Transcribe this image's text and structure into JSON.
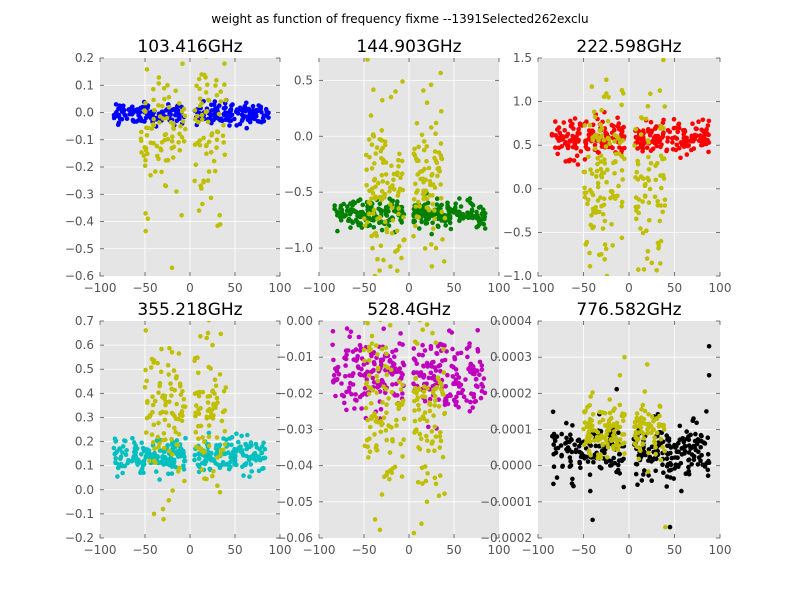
{
  "figure_title": "weight as function of frequency fixme --1391Selected262exclu",
  "chart_data": [
    {
      "type": "scatter",
      "title": "103.416GHz",
      "xlim": [
        -100,
        100
      ],
      "ylim": [
        -0.6,
        0.2
      ],
      "xticks": [
        -100,
        -50,
        0,
        50,
        100
      ],
      "yticks": [
        -0.6,
        -0.5,
        -0.4,
        -0.3,
        -0.2,
        -0.1,
        0.0,
        0.1,
        0.2
      ],
      "ytick_labels": [
        "−0.6",
        "−0.5",
        "−0.4",
        "−0.3",
        "−0.2",
        "−0.1",
        "0.0",
        "0.1",
        "0.2"
      ],
      "xtick_labels": [
        "−100",
        "−50",
        "0",
        "50",
        "100"
      ],
      "grid": true,
      "series": [
        {
          "color": "#0000ff",
          "role": "selected",
          "x_ranges": [
            [
              -85,
              -5
            ],
            [
              5,
              88
            ]
          ],
          "y_center": -0.005,
          "y_spread": 0.02,
          "count": 260
        },
        {
          "color": "#bfbf00",
          "role": "excluded",
          "x_ranges": [
            [
              -55,
              -5
            ],
            [
              5,
              40
            ]
          ],
          "y_center": -0.06,
          "y_spread": 0.12,
          "count": 150,
          "outliers": [
            [
              -20,
              -0.57
            ],
            [
              10,
              -0.36
            ],
            [
              -15,
              -0.29
            ],
            [
              -25,
              0.1
            ],
            [
              20,
              -0.25
            ],
            [
              30,
              -0.1
            ]
          ]
        }
      ]
    },
    {
      "type": "scatter",
      "title": "144.903GHz",
      "xlim": [
        -100,
        100
      ],
      "ylim": [
        -1.25,
        0.7
      ],
      "xticks": [
        -100,
        -50,
        0,
        50,
        100
      ],
      "yticks": [
        -1.0,
        -0.5,
        0.0,
        0.5
      ],
      "ytick_labels": [
        "−1.0",
        "−0.5",
        "0.0",
        "0.5"
      ],
      "xtick_labels": [
        "−100",
        "−50",
        "0",
        "50",
        "100"
      ],
      "grid": true,
      "series": [
        {
          "color": "#008000",
          "role": "selected",
          "x_ranges": [
            [
              -85,
              -5
            ],
            [
              5,
              85
            ]
          ],
          "y_center": -0.7,
          "y_spread": 0.06,
          "count": 300
        },
        {
          "color": "#bfbf00",
          "role": "excluded",
          "x_ranges": [
            [
              -50,
              -5
            ],
            [
              5,
              40
            ]
          ],
          "y_center": -0.45,
          "y_spread": 0.4,
          "count": 200,
          "outliers": [
            [
              -15,
              0.4
            ],
            [
              -20,
              0.35
            ],
            [
              -35,
              -1.1
            ],
            [
              20,
              0.3
            ],
            [
              30,
              -1.0
            ]
          ]
        }
      ]
    },
    {
      "type": "scatter",
      "title": "222.598GHz",
      "xlim": [
        -100,
        100
      ],
      "ylim": [
        -1.0,
        1.5
      ],
      "xticks": [
        -100,
        -50,
        0,
        50,
        100
      ],
      "yticks": [
        -1.0,
        -0.5,
        0.0,
        0.5,
        1.0,
        1.5
      ],
      "ytick_labels": [
        "−1.0",
        "−0.5",
        "0.0",
        "0.5",
        "1.0",
        "1.5"
      ],
      "xtick_labels": [
        "−100",
        "−50",
        "0",
        "50",
        "100"
      ],
      "grid": true,
      "series": [
        {
          "color": "#ff0000",
          "role": "selected",
          "x_ranges": [
            [
              -85,
              -5
            ],
            [
              5,
              88
            ]
          ],
          "y_center": 0.58,
          "y_spread": 0.1,
          "count": 320
        },
        {
          "color": "#bfbf00",
          "role": "excluded",
          "x_ranges": [
            [
              -50,
              -5
            ],
            [
              5,
              40
            ]
          ],
          "y_center": 0.1,
          "y_spread": 0.5,
          "count": 200,
          "outliers": [
            [
              -25,
              1.25
            ],
            [
              -30,
              0.9
            ],
            [
              25,
              -0.85
            ],
            [
              20,
              -0.8
            ],
            [
              -40,
              -0.45
            ]
          ]
        }
      ]
    },
    {
      "type": "scatter",
      "title": "355.218GHz",
      "xlim": [
        -100,
        100
      ],
      "ylim": [
        -0.2,
        0.7
      ],
      "xticks": [
        -100,
        -50,
        0,
        50,
        100
      ],
      "yticks": [
        -0.2,
        -0.1,
        0.0,
        0.1,
        0.2,
        0.3,
        0.4,
        0.5,
        0.6,
        0.7
      ],
      "ytick_labels": [
        "−0.2",
        "−0.1",
        "0.0",
        "0.1",
        "0.2",
        "0.3",
        "0.4",
        "0.5",
        "0.6",
        "0.7"
      ],
      "xtick_labels": [
        "−100",
        "−50",
        "0",
        "50",
        "100"
      ],
      "grid": true,
      "series": [
        {
          "color": "#00bfbf",
          "role": "selected",
          "x_ranges": [
            [
              -85,
              -5
            ],
            [
              5,
              85
            ]
          ],
          "y_center": 0.14,
          "y_spread": 0.035,
          "count": 300
        },
        {
          "color": "#bfbf00",
          "role": "excluded",
          "x_ranges": [
            [
              -50,
              -5
            ],
            [
              5,
              40
            ]
          ],
          "y_center": 0.3,
          "y_spread": 0.15,
          "count": 180,
          "outliers": [
            [
              20,
              0.65
            ],
            [
              -20,
              0.57
            ],
            [
              -40,
              -0.1
            ],
            [
              -30,
              -0.08
            ],
            [
              25,
              0.6
            ]
          ]
        }
      ]
    },
    {
      "type": "scatter",
      "title": "528.4GHz",
      "xlim": [
        -100,
        100
      ],
      "ylim": [
        -0.06,
        0.0
      ],
      "xticks": [
        -100,
        -50,
        0,
        50,
        100
      ],
      "yticks": [
        -0.06,
        -0.05,
        -0.04,
        -0.03,
        -0.02,
        -0.01,
        0.0
      ],
      "ytick_labels": [
        "−0.06",
        "−0.05",
        "−0.04",
        "−0.03",
        "−0.02",
        "−0.01",
        "0.00"
      ],
      "xtick_labels": [
        "−100",
        "−50",
        "0",
        "50",
        "100"
      ],
      "grid": true,
      "series": [
        {
          "color": "#bf00bf",
          "role": "selected",
          "x_ranges": [
            [
              -85,
              -5
            ],
            [
              5,
              85
            ]
          ],
          "y_center": -0.015,
          "y_spread": 0.005,
          "count": 320
        },
        {
          "color": "#bfbf00",
          "role": "excluded",
          "x_ranges": [
            [
              -50,
              -5
            ],
            [
              5,
              40
            ]
          ],
          "y_center": -0.025,
          "y_spread": 0.012,
          "count": 200,
          "outliers": [
            [
              -30,
              -0.048
            ],
            [
              20,
              -0.05
            ],
            [
              30,
              -0.045
            ],
            [
              20,
              -0.001
            ]
          ]
        }
      ]
    },
    {
      "type": "scatter",
      "title": "776.582GHz",
      "xlim": [
        -100,
        100
      ],
      "ylim": [
        -0.0002,
        0.0004
      ],
      "xticks": [
        -100,
        -50,
        0,
        50,
        100
      ],
      "yticks": [
        -0.0002,
        -0.0001,
        0.0,
        0.0001,
        0.0002,
        0.0003,
        0.0004
      ],
      "ytick_labels": [
        "−0.0002",
        "−0.0001",
        "0.0000",
        "0.0001",
        "0.0002",
        "0.0003",
        "0.0004"
      ],
      "xtick_labels": [
        "−100",
        "−50",
        "0",
        "50",
        "100"
      ],
      "grid": true,
      "series": [
        {
          "color": "#000000",
          "role": "selected",
          "x_ranges": [
            [
              -85,
              -5
            ],
            [
              5,
              88
            ]
          ],
          "y_center": 4e-05,
          "y_spread": 4e-05,
          "count": 300,
          "outliers": [
            [
              88,
              0.00033
            ],
            [
              88,
              0.00025
            ],
            [
              85,
              0.00015
            ],
            [
              -40,
              -0.00015
            ],
            [
              45,
              -0.00017
            ]
          ]
        },
        {
          "color": "#bfbf00",
          "role": "excluded",
          "x_ranges": [
            [
              -50,
              -5
            ],
            [
              5,
              40
            ]
          ],
          "y_center": 0.0001,
          "y_spread": 4e-05,
          "count": 180,
          "outliers": [
            [
              -5,
              0.0003
            ],
            [
              20,
              0.00028
            ],
            [
              -10,
              0.00025
            ],
            [
              40,
              -0.00017
            ]
          ]
        }
      ]
    }
  ]
}
